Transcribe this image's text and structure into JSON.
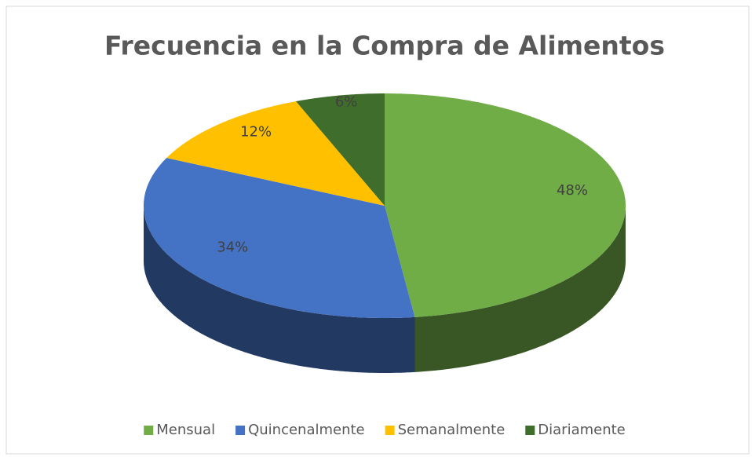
{
  "chart_data": {
    "type": "pie",
    "title": "Frecuencia en la Compra de Alimentos",
    "categories": [
      "Mensual",
      "Quincenalmente",
      "Semanalmente",
      "Diariamente"
    ],
    "values": [
      48,
      34,
      12,
      6
    ],
    "value_labels": [
      "48%",
      "34%",
      "12%",
      "6%"
    ],
    "colors": [
      "#70ad47",
      "#4472c4",
      "#ffc000",
      "#3f6d2b"
    ],
    "legend": "bottom"
  }
}
